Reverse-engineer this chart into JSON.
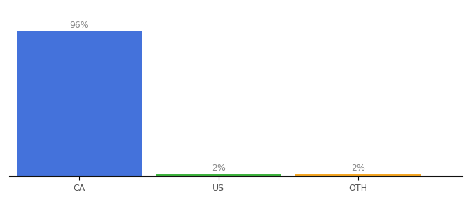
{
  "categories": [
    "CA",
    "US",
    "OTH"
  ],
  "values": [
    96,
    2,
    2
  ],
  "bar_colors": [
    "#4472db",
    "#3db33d",
    "#f5a623"
  ],
  "labels": [
    "96%",
    "2%",
    "2%"
  ],
  "ylim": [
    0,
    105
  ],
  "background_color": "#ffffff",
  "label_fontsize": 9,
  "tick_fontsize": 9,
  "bar_width": 0.6
}
